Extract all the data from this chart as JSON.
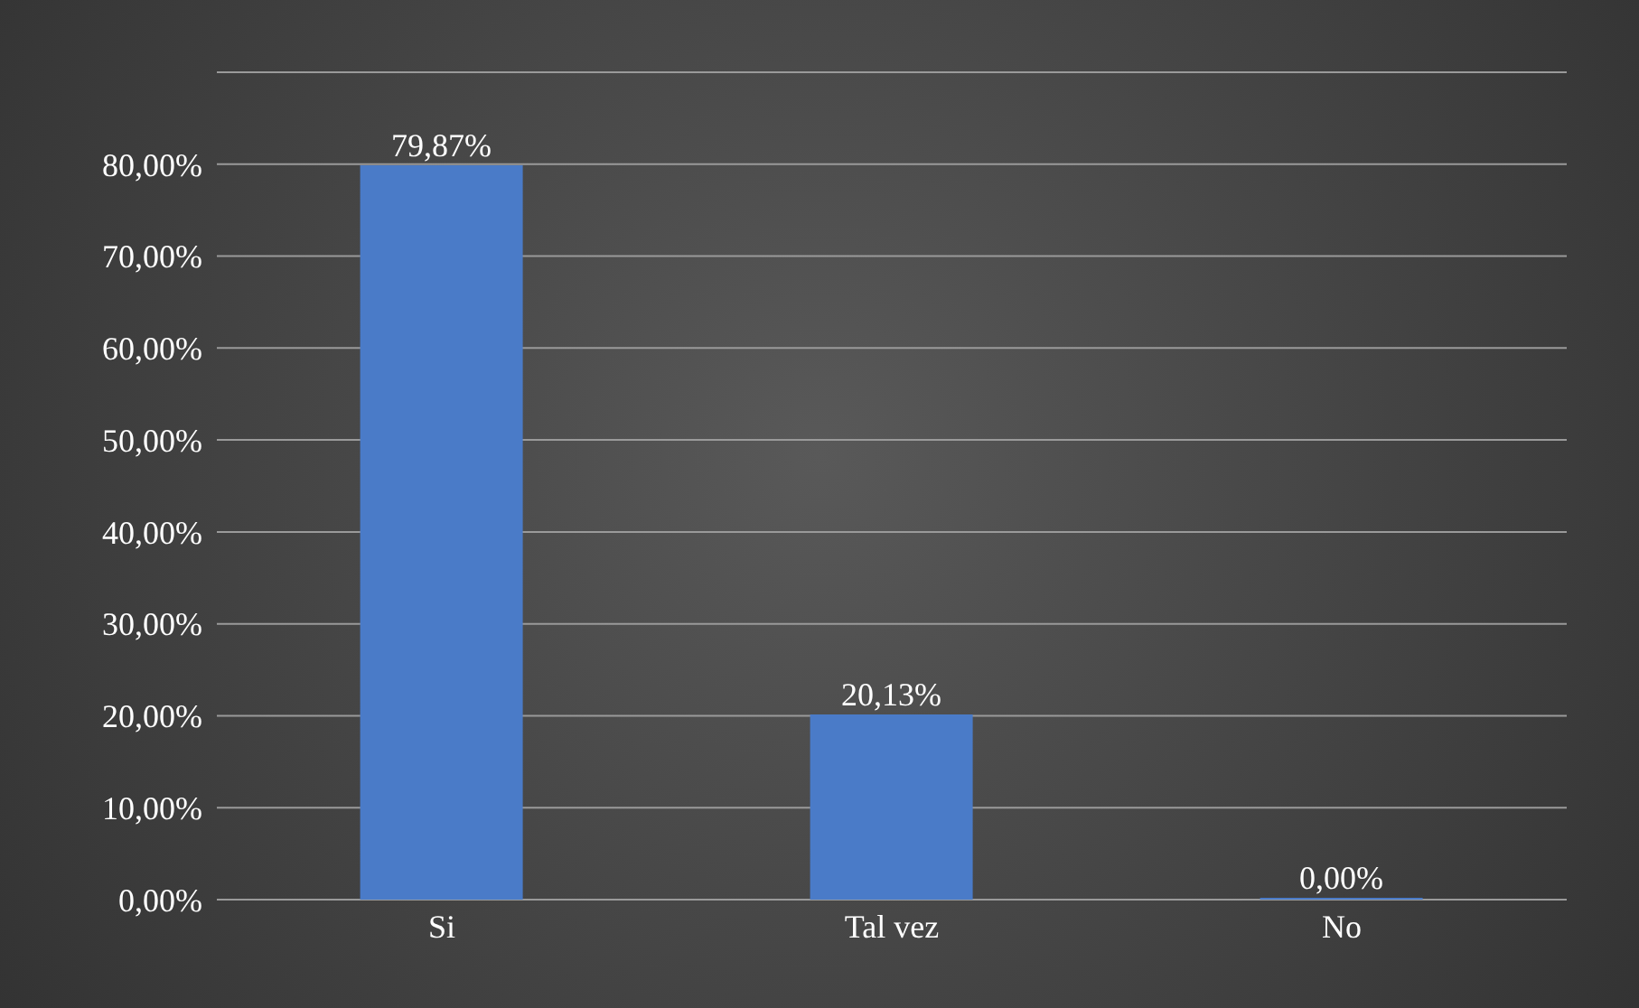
{
  "chart_data": {
    "type": "bar",
    "categories": [
      "Si",
      "Tal vez",
      "No"
    ],
    "values": [
      79.87,
      20.13,
      0
    ],
    "color": "#4a7bc8",
    "value_labels": [
      "79,87%",
      "20,13%",
      "0,00%"
    ],
    "ylim": [
      0,
      90
    ],
    "yticks": [
      {
        "value": 0,
        "label": "0,00%"
      },
      {
        "value": 10,
        "label": "10,00%"
      },
      {
        "value": 20,
        "label": "20,00%"
      },
      {
        "value": 30,
        "label": "30,00%"
      },
      {
        "value": 40,
        "label": "40,00%"
      },
      {
        "value": 50,
        "label": "50,00%"
      },
      {
        "value": 60,
        "label": "60,00%"
      },
      {
        "value": 70,
        "label": "70,00%"
      },
      {
        "value": 80,
        "label": "80,00%"
      },
      {
        "value": 90,
        "label": null
      }
    ],
    "grid": "y",
    "legend": false
  }
}
